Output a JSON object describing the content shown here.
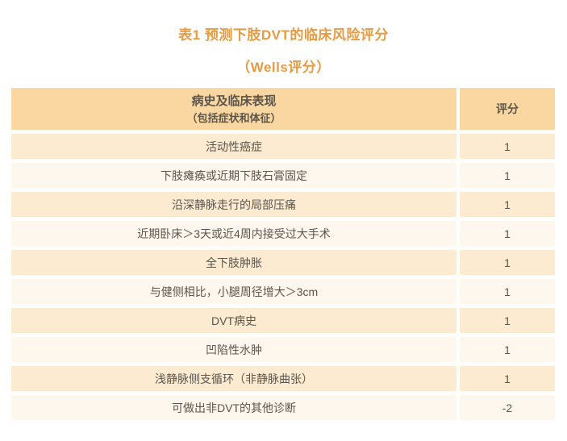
{
  "header": {
    "title_line1": "表1 预测下肢DVT的临床风险评分",
    "title_line2": "（Wells评分）"
  },
  "colors": {
    "title_color": "#e89a40",
    "header_bg": "#fad7a0",
    "row_odd_bg": "#fcebd0",
    "row_even_bg": "#fdf7ee",
    "text_color": "#5a554d"
  },
  "table": {
    "header": {
      "condition_line1": "病史及临床表现",
      "condition_line2": "（包括症状和体征）",
      "score": "评分"
    },
    "rows": [
      {
        "condition": "活动性癌症",
        "score": "1"
      },
      {
        "condition": "下肢瘫痪或近期下肢石膏固定",
        "score": "1"
      },
      {
        "condition": "沿深静脉走行的局部压痛",
        "score": "1"
      },
      {
        "condition": "近期卧床＞3天或近4周内接受过大手术",
        "score": "1"
      },
      {
        "condition": "全下肢肿胀",
        "score": "1"
      },
      {
        "condition": "与健侧相比，小腿周径增大＞3cm",
        "score": "1"
      },
      {
        "condition": "DVT病史",
        "score": "1"
      },
      {
        "condition": "凹陷性水肿",
        "score": "1"
      },
      {
        "condition": "浅静脉侧支循环（非静脉曲张）",
        "score": "1"
      },
      {
        "condition": "可做出非DVT的其他诊断",
        "score": "-2"
      }
    ]
  }
}
